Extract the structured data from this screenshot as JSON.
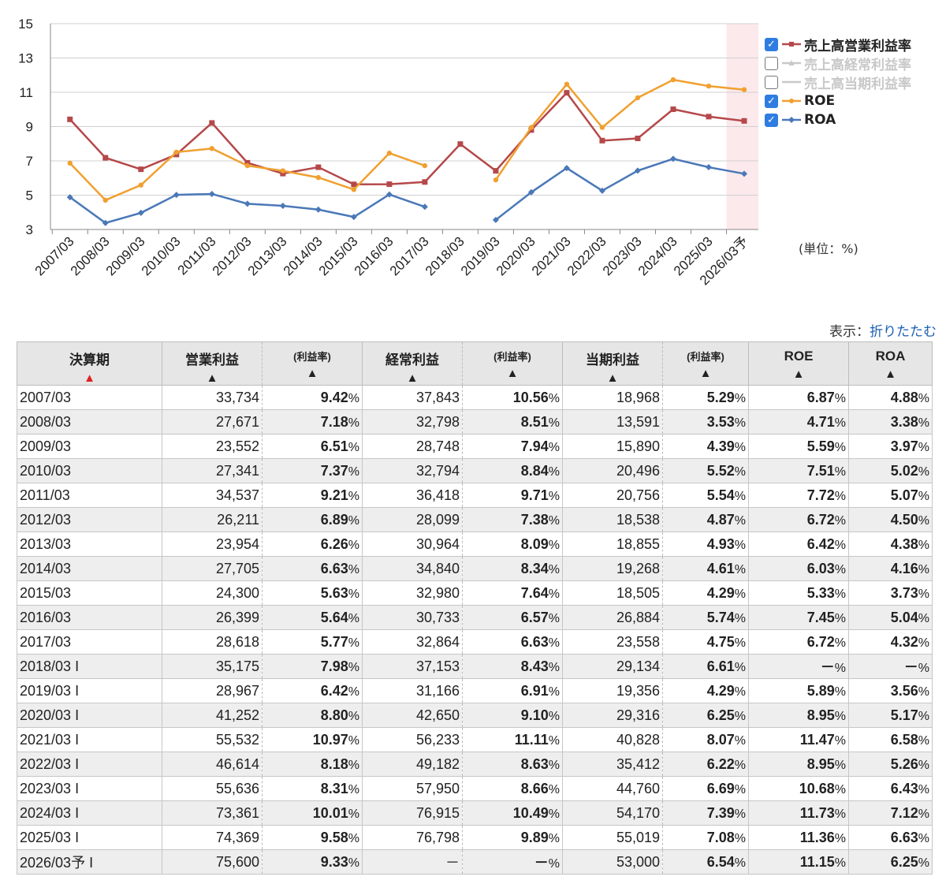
{
  "chart_data": {
    "type": "line",
    "categories": [
      "2007/03",
      "2008/03",
      "2009/03",
      "2010/03",
      "2011/03",
      "2012/03",
      "2013/03",
      "2014/03",
      "2015/03",
      "2016/03",
      "2017/03",
      "2018/03",
      "2019/03",
      "2020/03",
      "2021/03",
      "2022/03",
      "2023/03",
      "2024/03",
      "2025/03",
      "2026/03予"
    ],
    "ylim": [
      3,
      15
    ],
    "yticks": [
      3,
      5,
      7,
      9,
      11,
      13,
      15
    ],
    "grid": true,
    "legend_position": "right",
    "highlight_category": "2026/03予",
    "series": [
      {
        "name": "売上高営業利益率",
        "color": "#b5484a",
        "marker": "square",
        "visible": true,
        "values": [
          9.42,
          7.18,
          6.51,
          7.37,
          9.21,
          6.89,
          6.26,
          6.63,
          5.63,
          5.64,
          5.77,
          7.98,
          6.42,
          8.8,
          10.97,
          8.18,
          8.31,
          10.01,
          9.58,
          9.33
        ]
      },
      {
        "name": "売上高経常利益率",
        "color": "#c8c8c8",
        "marker": "triangle",
        "visible": false,
        "values": [
          10.56,
          8.51,
          7.94,
          8.84,
          9.71,
          7.38,
          8.09,
          8.34,
          7.64,
          6.57,
          6.63,
          8.43,
          6.91,
          9.1,
          11.11,
          8.63,
          8.66,
          10.49,
          9.89,
          null
        ]
      },
      {
        "name": "売上高当期利益率",
        "color": "#c8c8c8",
        "marker": "none",
        "visible": false,
        "values": [
          5.29,
          3.53,
          4.39,
          5.52,
          5.54,
          4.87,
          4.93,
          4.61,
          4.29,
          5.74,
          4.75,
          6.61,
          4.29,
          6.25,
          8.07,
          6.22,
          6.69,
          7.39,
          7.08,
          6.54
        ]
      },
      {
        "name": "ROE",
        "color": "#f0a030",
        "marker": "circle",
        "visible": true,
        "values": [
          6.87,
          4.71,
          5.59,
          7.51,
          7.72,
          6.72,
          6.42,
          6.03,
          5.33,
          7.45,
          6.72,
          null,
          5.89,
          8.95,
          11.47,
          8.95,
          10.68,
          11.73,
          11.36,
          11.15
        ]
      },
      {
        "name": "ROA",
        "color": "#4a78b8",
        "marker": "diamond",
        "visible": true,
        "values": [
          4.88,
          3.38,
          3.97,
          5.02,
          5.07,
          4.5,
          4.38,
          4.16,
          3.73,
          5.04,
          4.32,
          null,
          3.56,
          5.17,
          6.58,
          5.26,
          6.43,
          7.12,
          6.63,
          6.25
        ]
      }
    ]
  },
  "unit_label": "(単位：%)",
  "display_label": "表示：",
  "toggle_link": "折りたたむ",
  "table": {
    "headers": {
      "period": "決算期",
      "op_profit": "営業利益",
      "op_rate": "(利益率)",
      "ord_profit": "経常利益",
      "ord_rate": "(利益率)",
      "net_profit": "当期利益",
      "net_rate": "(利益率)",
      "roe": "ROE",
      "roa": "ROA"
    },
    "sort_up": "▲",
    "pct_unit": "%",
    "rows": [
      {
        "period": "2007/03",
        "mark": "",
        "op": "33,734",
        "op_rate": "9.42",
        "ord": "37,843",
        "ord_rate": "10.56",
        "net": "18,968",
        "net_rate": "5.29",
        "roe": "6.87",
        "roa": "4.88"
      },
      {
        "period": "2008/03",
        "mark": "",
        "op": "27,671",
        "op_rate": "7.18",
        "ord": "32,798",
        "ord_rate": "8.51",
        "net": "13,591",
        "net_rate": "3.53",
        "roe": "4.71",
        "roa": "3.38"
      },
      {
        "period": "2009/03",
        "mark": "",
        "op": "23,552",
        "op_rate": "6.51",
        "ord": "28,748",
        "ord_rate": "7.94",
        "net": "15,890",
        "net_rate": "4.39",
        "roe": "5.59",
        "roa": "3.97"
      },
      {
        "period": "2010/03",
        "mark": "",
        "op": "27,341",
        "op_rate": "7.37",
        "ord": "32,794",
        "ord_rate": "8.84",
        "net": "20,496",
        "net_rate": "5.52",
        "roe": "7.51",
        "roa": "5.02"
      },
      {
        "period": "2011/03",
        "mark": "",
        "op": "34,537",
        "op_rate": "9.21",
        "ord": "36,418",
        "ord_rate": "9.71",
        "net": "20,756",
        "net_rate": "5.54",
        "roe": "7.72",
        "roa": "5.07"
      },
      {
        "period": "2012/03",
        "mark": "",
        "op": "26,211",
        "op_rate": "6.89",
        "ord": "28,099",
        "ord_rate": "7.38",
        "net": "18,538",
        "net_rate": "4.87",
        "roe": "6.72",
        "roa": "4.50"
      },
      {
        "period": "2013/03",
        "mark": "",
        "op": "23,954",
        "op_rate": "6.26",
        "ord": "30,964",
        "ord_rate": "8.09",
        "net": "18,855",
        "net_rate": "4.93",
        "roe": "6.42",
        "roa": "4.38"
      },
      {
        "period": "2014/03",
        "mark": "",
        "op": "27,705",
        "op_rate": "6.63",
        "ord": "34,840",
        "ord_rate": "8.34",
        "net": "19,268",
        "net_rate": "4.61",
        "roe": "6.03",
        "roa": "4.16"
      },
      {
        "period": "2015/03",
        "mark": "",
        "op": "24,300",
        "op_rate": "5.63",
        "ord": "32,980",
        "ord_rate": "7.64",
        "net": "18,505",
        "net_rate": "4.29",
        "roe": "5.33",
        "roa": "3.73"
      },
      {
        "period": "2016/03",
        "mark": "",
        "op": "26,399",
        "op_rate": "5.64",
        "ord": "30,733",
        "ord_rate": "6.57",
        "net": "26,884",
        "net_rate": "5.74",
        "roe": "7.45",
        "roa": "5.04"
      },
      {
        "period": "2017/03",
        "mark": "",
        "op": "28,618",
        "op_rate": "5.77",
        "ord": "32,864",
        "ord_rate": "6.63",
        "net": "23,558",
        "net_rate": "4.75",
        "roe": "6.72",
        "roa": "4.32"
      },
      {
        "period": "2018/03",
        "mark": "I",
        "op": "35,175",
        "op_rate": "7.98",
        "ord": "37,153",
        "ord_rate": "8.43",
        "net": "29,134",
        "net_rate": "6.61",
        "roe": "－",
        "roa": "－"
      },
      {
        "period": "2019/03",
        "mark": "I",
        "op": "28,967",
        "op_rate": "6.42",
        "ord": "31,166",
        "ord_rate": "6.91",
        "net": "19,356",
        "net_rate": "4.29",
        "roe": "5.89",
        "roa": "3.56"
      },
      {
        "period": "2020/03",
        "mark": "I",
        "op": "41,252",
        "op_rate": "8.80",
        "ord": "42,650",
        "ord_rate": "9.10",
        "net": "29,316",
        "net_rate": "6.25",
        "roe": "8.95",
        "roa": "5.17"
      },
      {
        "period": "2021/03",
        "mark": "I",
        "op": "55,532",
        "op_rate": "10.97",
        "ord": "56,233",
        "ord_rate": "11.11",
        "net": "40,828",
        "net_rate": "8.07",
        "roe": "11.47",
        "roa": "6.58"
      },
      {
        "period": "2022/03",
        "mark": "I",
        "op": "46,614",
        "op_rate": "8.18",
        "ord": "49,182",
        "ord_rate": "8.63",
        "net": "35,412",
        "net_rate": "6.22",
        "roe": "8.95",
        "roa": "5.26"
      },
      {
        "period": "2023/03",
        "mark": "I",
        "op": "55,636",
        "op_rate": "8.31",
        "ord": "57,950",
        "ord_rate": "8.66",
        "net": "44,760",
        "net_rate": "6.69",
        "roe": "10.68",
        "roa": "6.43"
      },
      {
        "period": "2024/03",
        "mark": "I",
        "op": "73,361",
        "op_rate": "10.01",
        "ord": "76,915",
        "ord_rate": "10.49",
        "net": "54,170",
        "net_rate": "7.39",
        "roe": "11.73",
        "roa": "7.12"
      },
      {
        "period": "2025/03",
        "mark": "I",
        "op": "74,369",
        "op_rate": "9.58",
        "ord": "76,798",
        "ord_rate": "9.89",
        "net": "55,019",
        "net_rate": "7.08",
        "roe": "11.36",
        "roa": "6.63"
      },
      {
        "period": "2026/03予",
        "mark": "I",
        "op": "75,600",
        "op_rate": "9.33",
        "ord": "－",
        "ord_rate": "－",
        "net": "53,000",
        "net_rate": "6.54",
        "roe": "11.15",
        "roa": "6.25"
      }
    ]
  }
}
